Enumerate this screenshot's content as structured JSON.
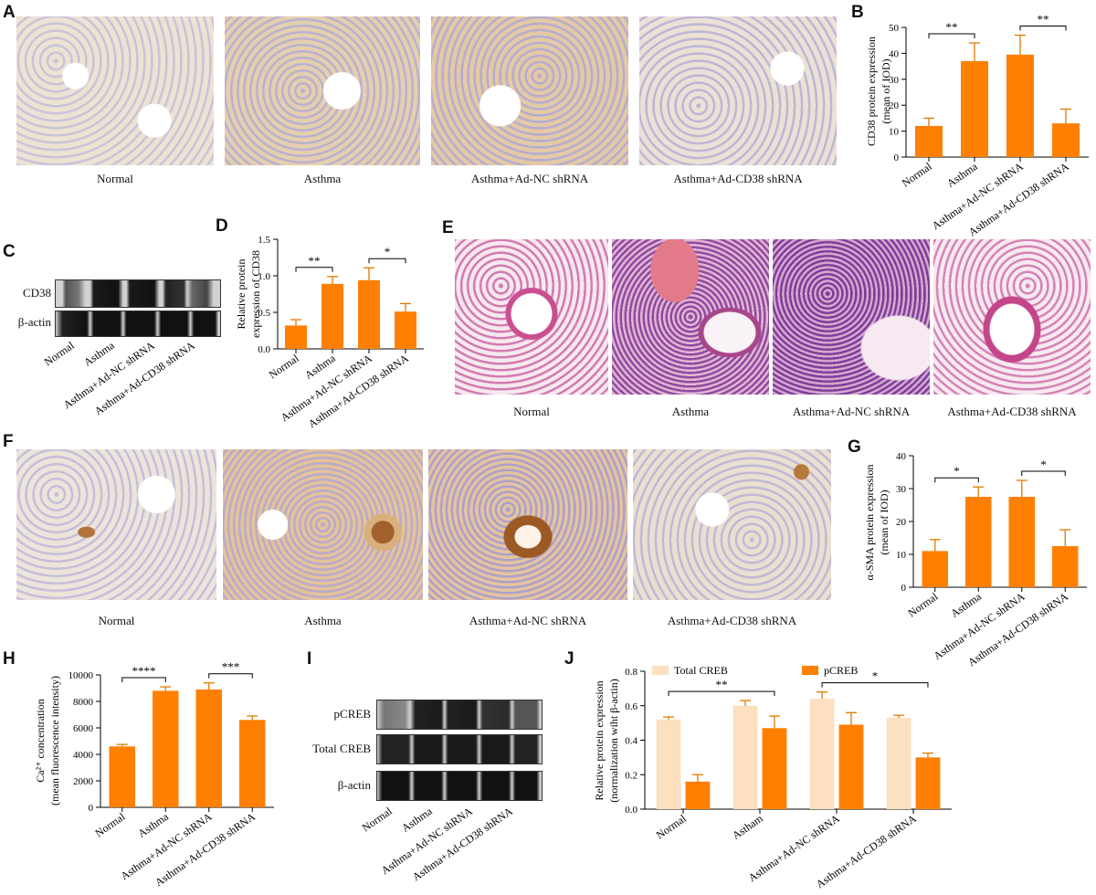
{
  "panels": {
    "A": {
      "label": "A",
      "captions": [
        "Normal",
        "Asthma",
        "Asthma+Ad-NC shRNA",
        "Asthma+Ad-CD38 shRNA"
      ]
    },
    "C": {
      "label": "C",
      "bands": [
        "CD38",
        "β-actin"
      ],
      "lanes": [
        "Normal",
        "Asthma",
        "Asthma+Ad-NC shRNA",
        "Asthma+Ad-CD38 shRNA"
      ]
    },
    "E": {
      "label": "E",
      "captions": [
        "Normal",
        "Asthma",
        "Asthma+Ad-NC shRNA",
        "Asthma+Ad-CD38 shRNA"
      ]
    },
    "F": {
      "label": "F",
      "captions": [
        "Normal",
        "Asthma",
        "Asthma+Ad-NC shRNA",
        "Asthma+Ad-CD38 shRNA"
      ]
    },
    "I": {
      "label": "I",
      "bands": [
        "pCREB",
        "Total CREB",
        "β-actin"
      ],
      "lanes": [
        "Normal",
        "Asthma",
        "Asthma+Ad-NC shRNA",
        "Asthma+Ad-CD38 shRNA"
      ]
    }
  },
  "colors": {
    "bar": "#ff7f00",
    "bar_light": "#fde0bf",
    "stain_a": "#e8dccb",
    "stain_e": "#f1c7dd"
  },
  "chart_data": [
    {
      "id": "B",
      "label": "B",
      "type": "bar",
      "categories": [
        "Normal",
        "Asthma",
        "Asthma+Ad-NC shRNA",
        "Asthma+Ad-CD38 shRNA"
      ],
      "values": [
        12,
        37,
        39.5,
        13
      ],
      "errors": [
        3,
        7,
        7.5,
        5.5
      ],
      "ylabel": [
        "CD38 protein expression",
        "(mean of IOD)"
      ],
      "ylim": [
        0,
        50
      ],
      "yticks": [
        0,
        10,
        20,
        30,
        40,
        50
      ],
      "significance": [
        {
          "from": 0,
          "to": 1,
          "text": "**"
        },
        {
          "from": 2,
          "to": 3,
          "text": "**"
        }
      ]
    },
    {
      "id": "D",
      "label": "D",
      "type": "bar",
      "categories": [
        "Normal",
        "Asthma",
        "Asthma+Ad-NC shRNA",
        "Asthma+Ad-CD38 shRNA"
      ],
      "values": [
        0.32,
        0.89,
        0.94,
        0.51
      ],
      "errors": [
        0.08,
        0.1,
        0.17,
        0.11
      ],
      "ylabel": [
        "Relative protein",
        "expression of CD38"
      ],
      "ylim": [
        0,
        1.5
      ],
      "yticks": [
        0.0,
        0.5,
        1.0,
        1.5
      ],
      "significance": [
        {
          "from": 0,
          "to": 1,
          "text": "**"
        },
        {
          "from": 2,
          "to": 3,
          "text": "*"
        }
      ]
    },
    {
      "id": "G",
      "label": "G",
      "type": "bar",
      "categories": [
        "Normal",
        "Asthma",
        "Asthma+Ad-NC shRNA",
        "Asthma+Ad-CD38 shRNA"
      ],
      "values": [
        11,
        27.5,
        27.5,
        12.5
      ],
      "errors": [
        3.5,
        3,
        5,
        5
      ],
      "ylabel": [
        "α-SMA protein expression",
        "(mean of IOD)"
      ],
      "ylim": [
        0,
        40
      ],
      "yticks": [
        0,
        10,
        20,
        30,
        40
      ],
      "significance": [
        {
          "from": 0,
          "to": 1,
          "text": "*"
        },
        {
          "from": 2,
          "to": 3,
          "text": "*"
        }
      ]
    },
    {
      "id": "H",
      "label": "H",
      "type": "bar",
      "categories": [
        "Normal",
        "Asthma",
        "Asthma+Ad-NC shRNA",
        "Asthma+Ad-CD38 shRNA"
      ],
      "values": [
        4600,
        8800,
        8900,
        6600
      ],
      "errors": [
        150,
        300,
        500,
        300
      ],
      "ylabel": [
        "Ca²⁺ concentration",
        "(mean fluorescence intensity)"
      ],
      "ylim": [
        0,
        10000
      ],
      "yticks": [
        0,
        2000,
        4000,
        6000,
        8000,
        10000
      ],
      "significance": [
        {
          "from": 0,
          "to": 1,
          "text": "****"
        },
        {
          "from": 2,
          "to": 3,
          "text": "***"
        }
      ]
    },
    {
      "id": "J",
      "label": "J",
      "type": "bar",
      "categories": [
        "Normal",
        "Astham",
        "Asthma+Ad-NC shRNA",
        "Asthma+Ad-CD38 shRNA"
      ],
      "series": [
        {
          "name": "Total CREB",
          "values": [
            0.52,
            0.6,
            0.64,
            0.53
          ],
          "errors": [
            0.015,
            0.03,
            0.04,
            0.015
          ]
        },
        {
          "name": "pCREB",
          "values": [
            0.16,
            0.47,
            0.49,
            0.3
          ],
          "errors": [
            0.04,
            0.07,
            0.07,
            0.025
          ]
        }
      ],
      "ylabel": [
        "Relative protein expression",
        "(normalization wiht β-actin)"
      ],
      "ylim": [
        0,
        0.8
      ],
      "yticks": [
        0.0,
        0.2,
        0.4,
        0.6,
        0.8
      ],
      "legend": "top",
      "significance": [
        {
          "from": 0,
          "to": 1,
          "text": "**",
          "series": 1
        },
        {
          "from": 2,
          "to": 3,
          "text": "*",
          "series": 1
        }
      ]
    }
  ]
}
